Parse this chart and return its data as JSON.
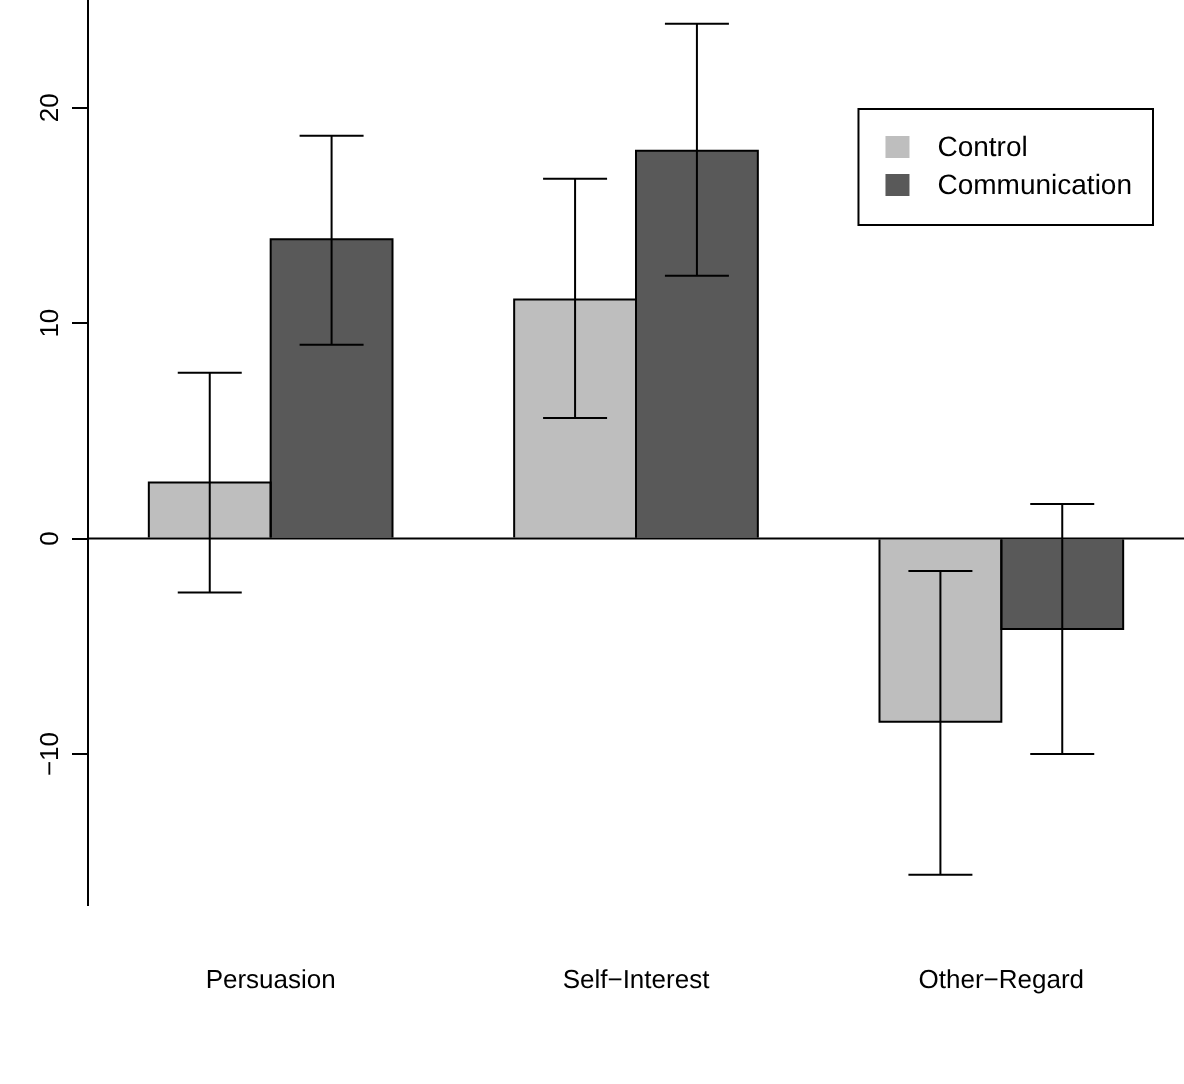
{
  "chart_data": {
    "type": "bar",
    "categories": [
      "Persuasion",
      "Self−Interest",
      "Other−Regard"
    ],
    "series": [
      {
        "name": "Control",
        "color": "#bebebe",
        "values": [
          2.6,
          11.1,
          -8.5
        ],
        "errors": [
          [
            -2.5,
            7.7
          ],
          [
            5.6,
            16.7
          ],
          [
            -15.6,
            -1.5
          ]
        ]
      },
      {
        "name": "Communication",
        "color": "#595959",
        "values": [
          13.9,
          18.0,
          -4.2
        ],
        "errors": [
          [
            9.0,
            18.7
          ],
          [
            12.2,
            23.9
          ],
          [
            -10.0,
            1.6
          ]
        ]
      }
    ],
    "ylim": [
      -17,
      25
    ],
    "yticks": [
      -10,
      0,
      10,
      20
    ],
    "ref_lines": [
      {
        "axis": "y",
        "value": 0,
        "color": "#000000"
      }
    ],
    "grid": false,
    "legend": "top right"
  }
}
